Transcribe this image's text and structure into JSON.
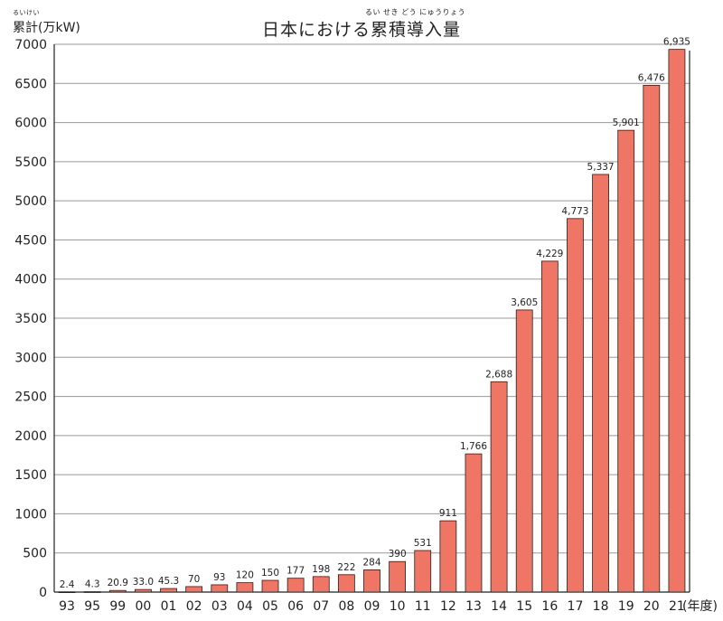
{
  "chart_data": {
    "type": "bar",
    "title": "日本における累積導入量",
    "title_ruby": "るい せき どう にゅうりょう",
    "ylabel": "累計(万kW)",
    "ylabel_ruby": "るいけい",
    "xlabel": "(年度)",
    "categories": [
      "93",
      "95",
      "99",
      "00",
      "01",
      "02",
      "03",
      "04",
      "05",
      "06",
      "07",
      "08",
      "09",
      "10",
      "11",
      "12",
      "13",
      "14",
      "15",
      "16",
      "17",
      "18",
      "19",
      "20",
      "21"
    ],
    "values": [
      2.4,
      4.3,
      20.9,
      33.0,
      45.3,
      70,
      93,
      120,
      150,
      177,
      198,
      222,
      284,
      390,
      531,
      911,
      1766,
      2688,
      3605,
      4229,
      4773,
      5337,
      5901,
      6476,
      6935
    ],
    "data_labels": [
      "2.4",
      "4.3",
      "20.9",
      "33.0",
      "45.3",
      "70",
      "93",
      "120",
      "150",
      "177",
      "198",
      "222",
      "284",
      "390",
      "531",
      "911",
      "1,766",
      "2,688",
      "3,605",
      "4,229",
      "4,773",
      "5,337",
      "5,901",
      "6,476",
      "6,935"
    ],
    "ylim": [
      0,
      7000
    ],
    "yticks": [
      0,
      500,
      1000,
      1500,
      2000,
      2500,
      3000,
      3500,
      4000,
      4500,
      5000,
      5500,
      6000,
      6500,
      7000
    ],
    "grid": true,
    "bar_color": "#ef7564",
    "bar_edge_color": "#222222"
  }
}
